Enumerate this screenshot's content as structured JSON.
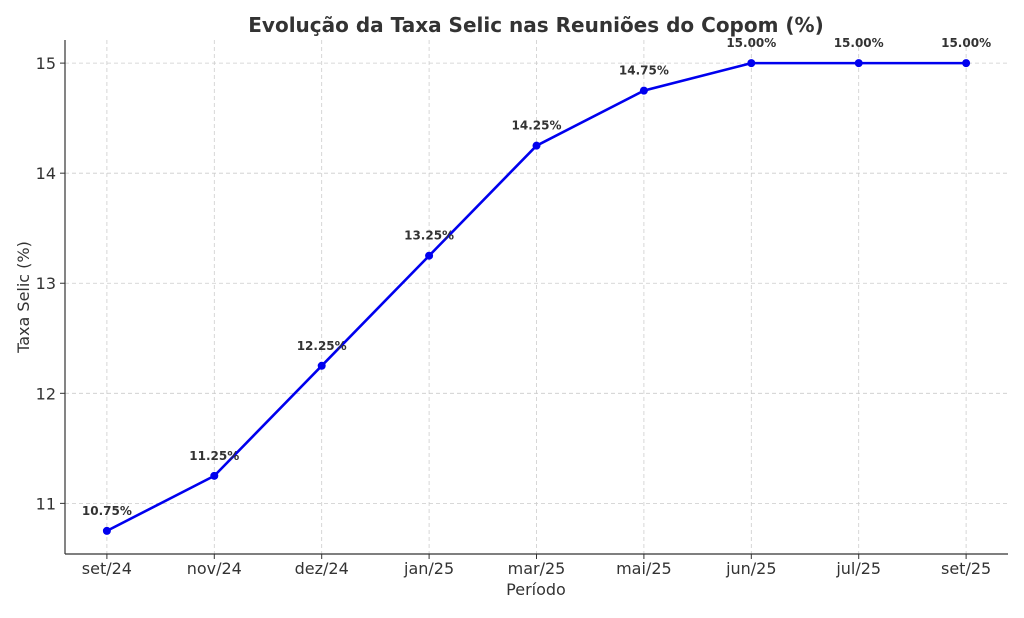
{
  "chart_data": {
    "type": "line",
    "title": "Evolução da Taxa Selic nas Reuniões do Copom (%)",
    "xlabel": "Período",
    "ylabel": "Taxa Selic (%)",
    "categories": [
      "set/24",
      "nov/24",
      "dez/24",
      "jan/25",
      "mar/25",
      "mai/25",
      "jun/25",
      "jul/25",
      "set/25"
    ],
    "values": [
      10.75,
      11.25,
      12.25,
      13.25,
      14.25,
      14.75,
      15.0,
      15.0,
      15.0
    ],
    "data_labels": [
      "10.75%",
      "11.25%",
      "12.25%",
      "13.25%",
      "14.25%",
      "14.75%",
      "15.00%",
      "15.00%",
      "15.00%"
    ],
    "yticks": [
      11,
      12,
      13,
      14,
      15
    ],
    "ylim": [
      10.54,
      15.21
    ],
    "grid": true,
    "line_color": "#0000ee",
    "marker": "circle"
  }
}
